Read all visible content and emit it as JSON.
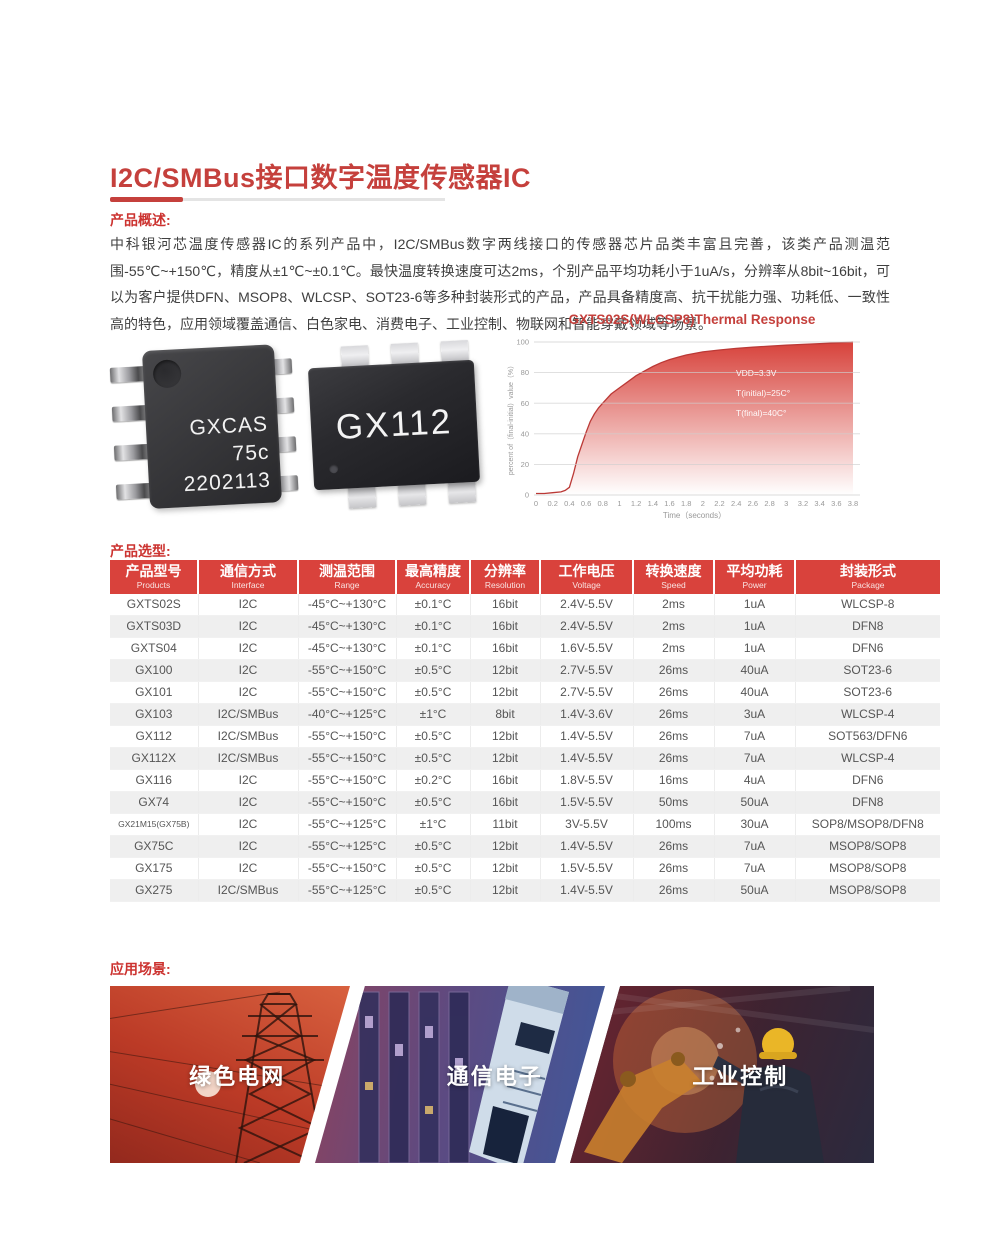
{
  "page": {
    "title": "I2C/SMBus接口数字温度传感器IC",
    "overview_label": "产品概述:",
    "overview_text": "中科银河芯温度传感器IC的系列产品中，I2C/SMBus数字两线接口的传感器芯片品类丰富且完善，该类产品测温范围-55℃~+150℃，精度从±1℃~±0.1℃。最快温度转换速度可达2ms，个别产品平均功耗小于1uA/s，分辨率从8bit~16bit，可以为客户提供DFN、MSOP8、WLCSP、SOT23-6等多种封装形式的产品，产品具备精度高、抗干扰能力强、功耗低、一致性高的特色，应用领域覆盖通信、白色家电、消费电子、工业控制、物联网和智能穿戴领域等场景。",
    "selection_label": "产品选型:",
    "applications_label": "应用场景:"
  },
  "colors": {
    "accent_red": "#c5403c",
    "table_header_red": "#d9423c",
    "chart_red": "#d7423b",
    "row_alt_gray": "#efefef"
  },
  "chips": {
    "chip1_lines": [
      "GXCAS",
      "75c",
      "2202113"
    ],
    "chip2_label": "GX112"
  },
  "chart_data": {
    "type": "area",
    "title": "GXTS02S(WLCSP8)Thermal Response",
    "xlabel": "Time（seconds）",
    "ylabel": "percent of（final-initial）value（%）",
    "xlim": [
      0,
      3.8
    ],
    "ylim": [
      0,
      100
    ],
    "x_ticks": [
      0,
      0.2,
      0.4,
      0.6,
      0.8,
      1,
      1.2,
      1.4,
      1.6,
      1.8,
      2,
      2.2,
      2.4,
      2.6,
      2.8,
      3,
      3.2,
      3.4,
      3.6,
      3.8
    ],
    "y_ticks": [
      0,
      20,
      40,
      60,
      80,
      100
    ],
    "grid": "horizontal",
    "legend": "none",
    "annotations": [
      "VDD=3.3V",
      "T(initial)=25C°",
      "T(final)=40C°"
    ],
    "x": [
      0,
      0.1,
      0.2,
      0.3,
      0.35,
      0.4,
      0.45,
      0.5,
      0.55,
      0.6,
      0.65,
      0.7,
      0.75,
      0.8,
      0.9,
      1.0,
      1.1,
      1.2,
      1.3,
      1.4,
      1.5,
      1.6,
      1.7,
      1.8,
      2.0,
      2.2,
      2.4,
      2.6,
      2.8,
      3.0,
      3.2,
      3.4,
      3.6,
      3.8
    ],
    "y": [
      1,
      1,
      1.5,
      2,
      3,
      5,
      14,
      25,
      33,
      41,
      48,
      53,
      57,
      60,
      66,
      70,
      74,
      78,
      81,
      84,
      86.5,
      88.5,
      90,
      91.5,
      93.5,
      94.8,
      95.8,
      96.6,
      97.3,
      97.9,
      98.4,
      98.9,
      99.4,
      100
    ]
  },
  "table": {
    "headers": [
      {
        "zh": "产品型号",
        "en": "Products"
      },
      {
        "zh": "通信方式",
        "en": "Interface"
      },
      {
        "zh": "测温范围",
        "en": "Range"
      },
      {
        "zh": "最高精度",
        "en": "Accuracy"
      },
      {
        "zh": "分辨率",
        "en": "Resolution"
      },
      {
        "zh": "工作电压",
        "en": "Voltage"
      },
      {
        "zh": "转换速度",
        "en": "Speed"
      },
      {
        "zh": "平均功耗",
        "en": "Power"
      },
      {
        "zh": "封装形式",
        "en": "Package"
      }
    ],
    "rows": [
      [
        "GXTS02S",
        "I2C",
        "-45°C~+130°C",
        "±0.1°C",
        "16bit",
        "2.4V-5.5V",
        "2ms",
        "1uA",
        "WLCSP-8"
      ],
      [
        "GXTS03D",
        "I2C",
        "-45°C~+130°C",
        "±0.1°C",
        "16bit",
        "2.4V-5.5V",
        "2ms",
        "1uA",
        "DFN8"
      ],
      [
        "GXTS04",
        "I2C",
        "-45°C~+130°C",
        "±0.1°C",
        "16bit",
        "1.6V-5.5V",
        "2ms",
        "1uA",
        "DFN6"
      ],
      [
        "GX100",
        "I2C",
        "-55°C~+150°C",
        "±0.5°C",
        "12bit",
        "2.7V-5.5V",
        "26ms",
        "40uA",
        "SOT23-6"
      ],
      [
        "GX101",
        "I2C",
        "-55°C~+150°C",
        "±0.5°C",
        "12bit",
        "2.7V-5.5V",
        "26ms",
        "40uA",
        "SOT23-6"
      ],
      [
        "GX103",
        "I2C/SMBus",
        "-40°C~+125°C",
        "±1°C",
        "8bit",
        "1.4V-3.6V",
        "26ms",
        "3uA",
        "WLCSP-4"
      ],
      [
        "GX112",
        "I2C/SMBus",
        "-55°C~+150°C",
        "±0.5°C",
        "12bit",
        "1.4V-5.5V",
        "26ms",
        "7uA",
        "SOT563/DFN6"
      ],
      [
        "GX112X",
        "I2C/SMBus",
        "-55°C~+150°C",
        "±0.5°C",
        "12bit",
        "1.4V-5.5V",
        "26ms",
        "7uA",
        "WLCSP-4"
      ],
      [
        "GX116",
        "I2C",
        "-55°C~+150°C",
        "±0.2°C",
        "16bit",
        "1.8V-5.5V",
        "16ms",
        "4uA",
        "DFN6"
      ],
      [
        "GX74",
        "I2C",
        "-55°C~+150°C",
        "±0.5°C",
        "16bit",
        "1.5V-5.5V",
        "50ms",
        "50uA",
        "DFN8"
      ],
      [
        "GX21M15(GX75B)",
        "I2C",
        "-55°C~+125°C",
        "±1°C",
        "11bit",
        "3V-5.5V",
        "100ms",
        "30uA",
        "SOP8/MSOP8/DFN8"
      ],
      [
        "GX75C",
        "I2C",
        "-55°C~+125°C",
        "±0.5°C",
        "12bit",
        "1.4V-5.5V",
        "26ms",
        "7uA",
        "MSOP8/SOP8"
      ],
      [
        "GX175",
        "I2C",
        "-55°C~+150°C",
        "±0.5°C",
        "12bit",
        "1.5V-5.5V",
        "26ms",
        "7uA",
        "MSOP8/SOP8"
      ],
      [
        "GX275",
        "I2C/SMBus",
        "-55°C~+125°C",
        "±0.5°C",
        "12bit",
        "1.4V-5.5V",
        "26ms",
        "50uA",
        "MSOP8/SOP8"
      ]
    ]
  },
  "applications": [
    {
      "label": "绿色电网"
    },
    {
      "label": "通信电子"
    },
    {
      "label": "工业控制"
    }
  ]
}
